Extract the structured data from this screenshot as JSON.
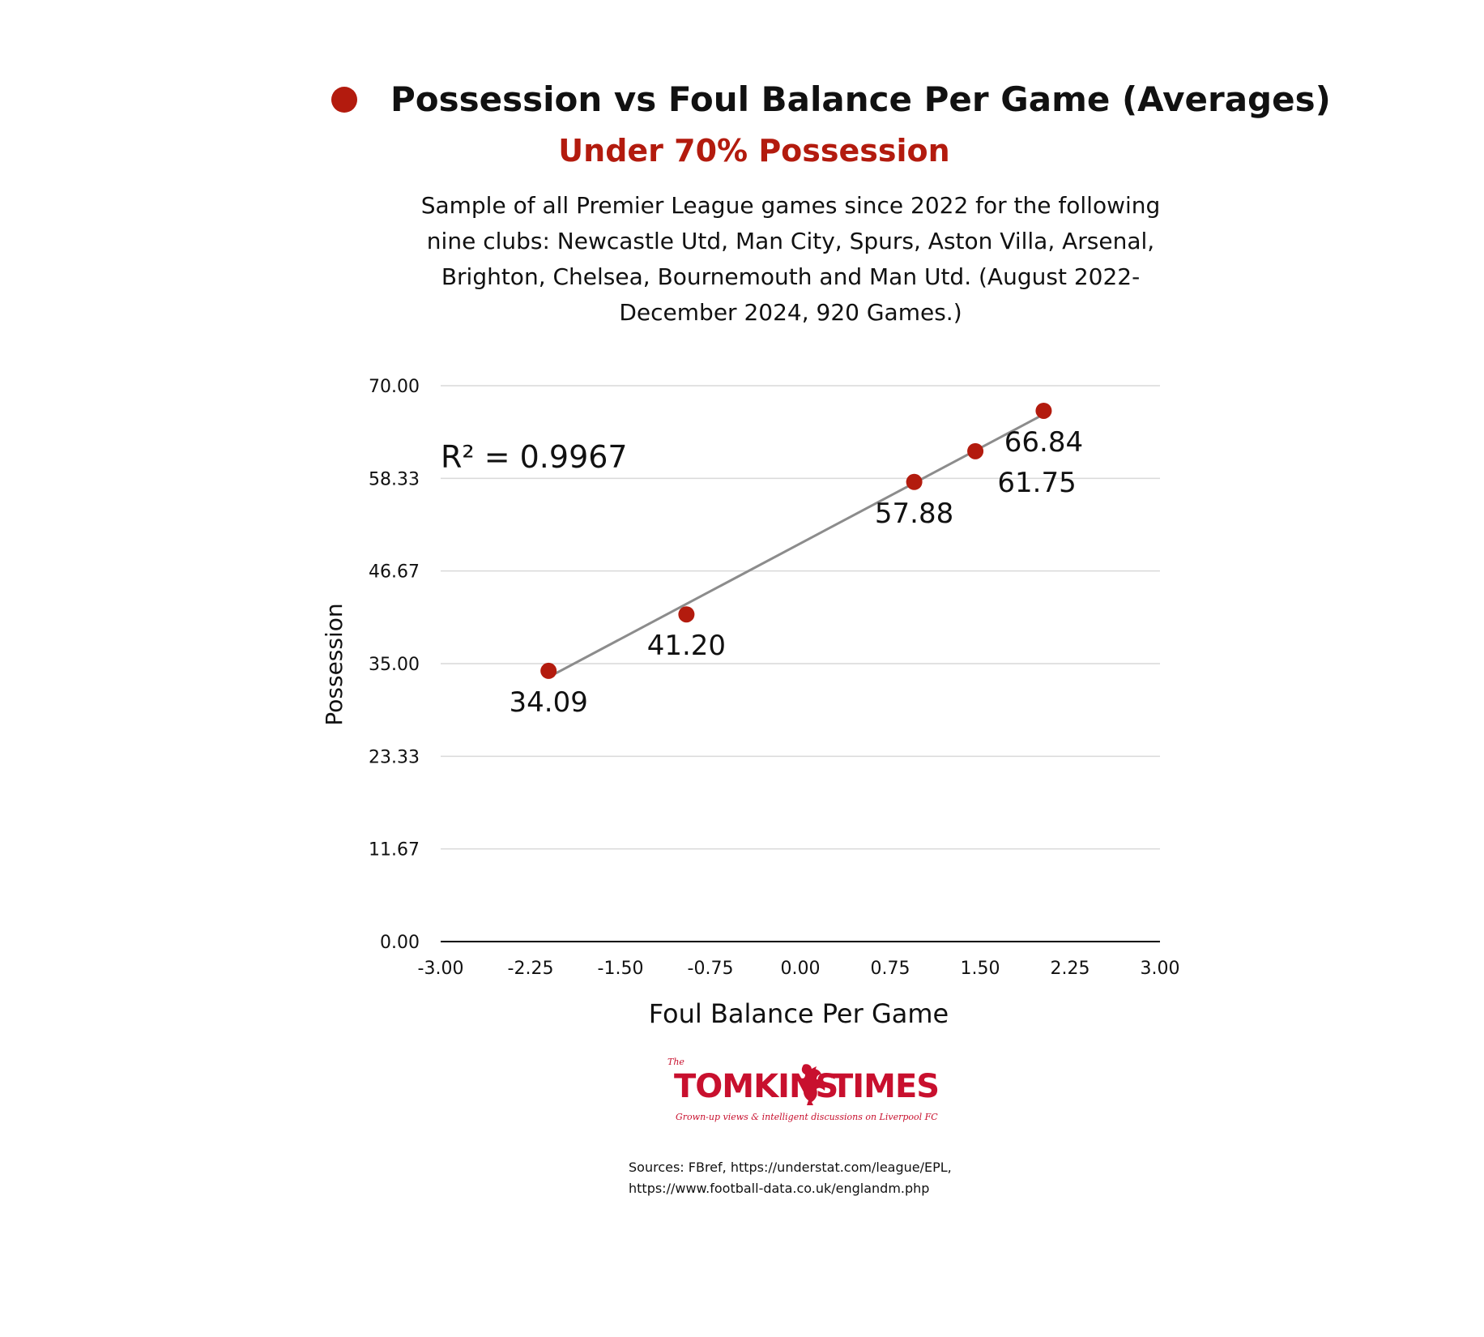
{
  "header": {
    "title": "Possession vs Foul Balance Per Game (Averages)",
    "subtitle": "Under 70% Possession",
    "description": "Sample of all Premier League games since 2022 for the following nine clubs: Newcastle Utd, Man City, Spurs, Aston Villa, Arsenal, Brighton, Chelsea, Bournemouth and Man Utd. (August 2022-December 2024, 920 Games.)"
  },
  "colors": {
    "accent": "#b31b0e",
    "trendline": "#8c8c8c",
    "gridline": "#d9d9d9",
    "axis": "#000000"
  },
  "chart_data": {
    "type": "scatter",
    "xlabel": "Foul Balance Per Game",
    "ylabel": "Possession",
    "xlim": [
      -3.0,
      3.0
    ],
    "ylim": [
      0.0,
      70.0
    ],
    "x_ticks": [
      "-3.00",
      "-2.25",
      "-1.50",
      "-0.75",
      "0.00",
      "0.75",
      "1.50",
      "2.25",
      "3.00"
    ],
    "y_ticks": [
      "0.00",
      "11.67",
      "23.33",
      "35.00",
      "46.67",
      "58.33",
      "70.00"
    ],
    "x_tick_values": [
      -3.0,
      -2.25,
      -1.5,
      -0.75,
      0.0,
      0.75,
      1.5,
      2.25,
      3.0
    ],
    "y_tick_values": [
      0.0,
      11.67,
      23.33,
      35.0,
      46.67,
      58.33,
      70.0
    ],
    "grid": true,
    "series": [
      {
        "points": [
          {
            "x": -2.1,
            "y": 34.09,
            "label": "34.09"
          },
          {
            "x": -0.95,
            "y": 41.2,
            "label": "41.20"
          },
          {
            "x": 0.95,
            "y": 57.88,
            "label": "57.88"
          },
          {
            "x": 1.46,
            "y": 61.75,
            "label": "61.75"
          },
          {
            "x": 2.03,
            "y": 66.84,
            "label": "66.84"
          }
        ]
      }
    ],
    "trendline": {
      "x_range": [
        -2.1,
        2.03
      ],
      "y_range": [
        33.3,
        66.4
      ],
      "annotation": "R² = 0.9967"
    }
  },
  "logo": {
    "the": "The",
    "name_left": "TOMKINS",
    "name_right": "TIMES",
    "tagline": "Grown-up views & intelligent discussions on Liverpool FC"
  },
  "sources": {
    "line1": "Sources: FBref, https://understat.com/league/EPL,",
    "line2": "https://www.football-data.co.uk/englandm.php"
  }
}
